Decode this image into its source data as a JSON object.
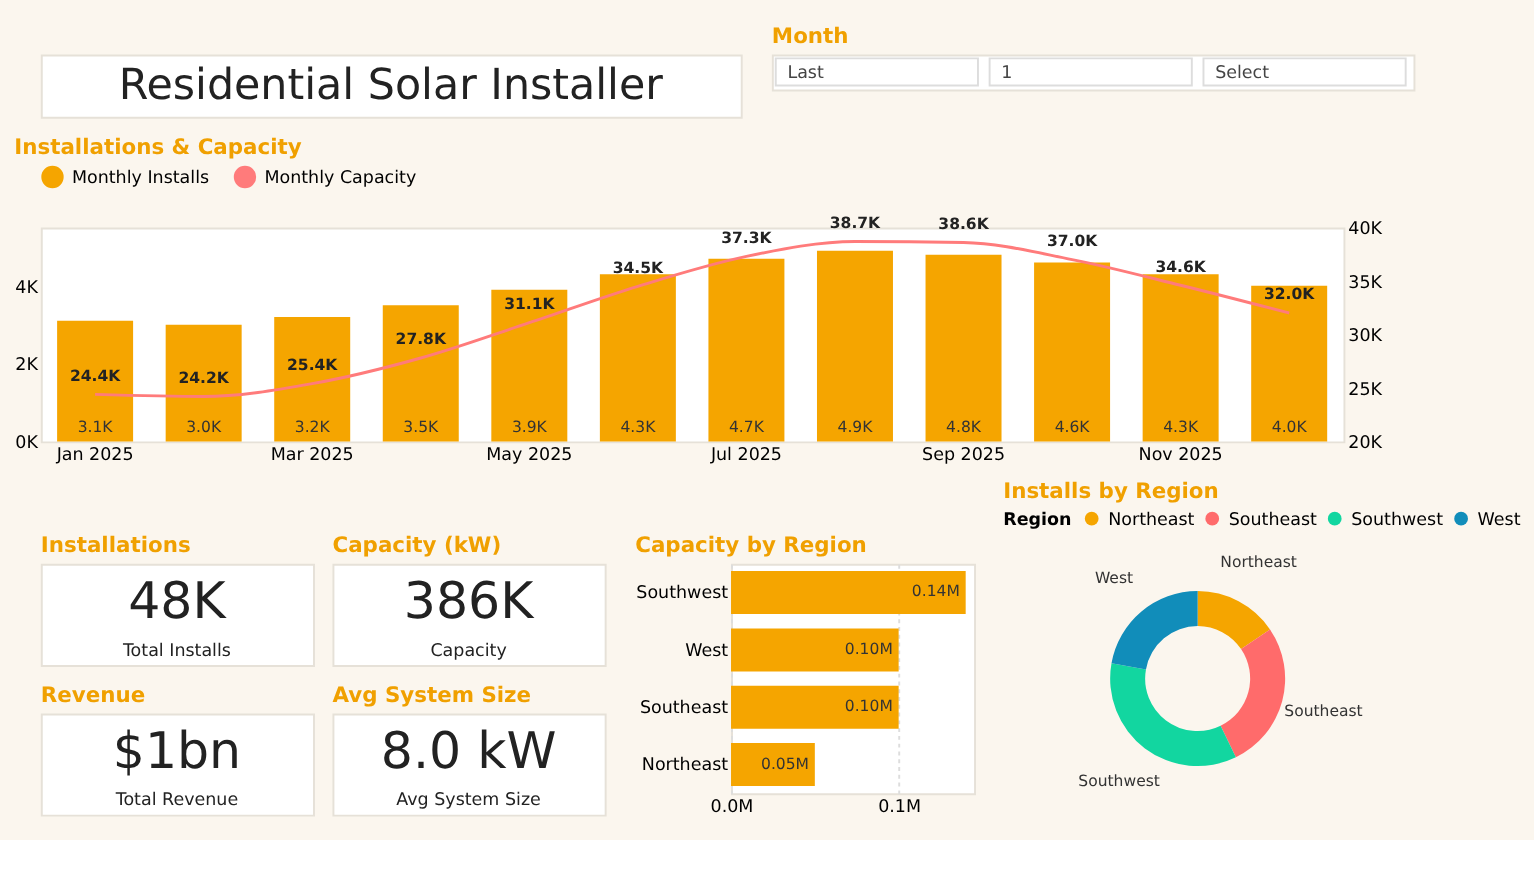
{
  "chart_data": [
    {
      "type": "other",
      "title": "Residential Solar Installer"
    },
    {
      "type": "other",
      "title": "Month",
      "annotations": [
        "Last",
        "1",
        "Select"
      ]
    },
    {
      "type": "bar",
      "title": "Installations & Capacity",
      "categories": [
        "Jan 2025",
        null,
        "Mar 2025",
        null,
        "May 2025",
        null,
        "Jul 2025",
        null,
        "Sep 2025",
        null,
        "Nov 2025",
        null
      ],
      "series": [
        {
          "name": "Monthly Installs",
          "type": "bar",
          "color": "#f5a500",
          "values": [
            3100,
            3000,
            3200,
            3500,
            3900,
            4300,
            4700,
            4900,
            4800,
            4600,
            4300,
            4000
          ],
          "value_labels": [
            "3.1K",
            "3.0K",
            "3.2K",
            "3.5K",
            "3.9K",
            "4.3K",
            "4.7K",
            "4.9K",
            "4.8K",
            "4.6K",
            "4.3K",
            "4.0K"
          ]
        },
        {
          "name": "Monthly Capacity",
          "type": "line",
          "axis": "y2",
          "color": "#ff7b7b",
          "values": [
            24400,
            24200,
            25400,
            27800,
            31100,
            34500,
            37300,
            38700,
            38600,
            37000,
            34600,
            32000
          ],
          "value_labels": [
            "24.4K",
            "24.2K",
            "25.4K",
            "27.8K",
            "31.1K",
            "34.5K",
            "37.3K",
            "38.7K",
            "38.6K",
            "37.0K",
            "34.6K",
            "32.0K"
          ]
        }
      ],
      "ylim": [
        0,
        5500
      ],
      "yticks": [
        {
          "value": 0,
          "label": "0K"
        },
        {
          "value": 2000,
          "label": "2K"
        },
        {
          "value": 4000,
          "label": "4K"
        }
      ],
      "y2lim": [
        20000,
        40000
      ],
      "y2ticks": [
        {
          "value": 20000,
          "label": "20K"
        },
        {
          "value": 25000,
          "label": "25K"
        },
        {
          "value": 30000,
          "label": "30K"
        },
        {
          "value": 35000,
          "label": "35K"
        },
        {
          "value": 40000,
          "label": "40K"
        }
      ],
      "legend": "top left",
      "marker": "none",
      "line_style": "solid"
    },
    {
      "type": "other",
      "title": "Installations",
      "annotations": [
        "48K",
        "Total Installs"
      ]
    },
    {
      "type": "other",
      "title": "Capacity (kW)",
      "annotations": [
        "386K",
        "Capacity"
      ]
    },
    {
      "type": "other",
      "title": "Revenue",
      "annotations": [
        "$1bn",
        "Total Revenue"
      ]
    },
    {
      "type": "other",
      "title": "Avg System Size",
      "annotations": [
        "8.0 kW",
        "Avg System Size"
      ]
    },
    {
      "type": "bar",
      "orientation": "horizontal",
      "title": "Capacity by Region",
      "categories": [
        "Southwest",
        "West",
        "Southeast",
        "Northeast"
      ],
      "values": [
        0.14,
        0.1,
        0.1,
        0.05
      ],
      "value_labels": [
        "0.14M",
        "0.10M",
        "0.10M",
        "0.05M"
      ],
      "color": "#f5a500",
      "xlim": [
        0,
        0.145
      ],
      "xticks": [
        {
          "value": 0,
          "label": "0.0M"
        },
        {
          "value": 0.1,
          "label": "0.1M"
        }
      ],
      "grid": "x"
    },
    {
      "type": "donut",
      "title": "Installs by Region",
      "legend_title": "Region",
      "categories": [
        "Northeast",
        "Southeast",
        "Southwest",
        "West"
      ],
      "values": [
        15.5,
        27.3,
        35.0,
        22.2
      ],
      "colors": [
        "#f5a500",
        "#ff6b6b",
        "#12d6a0",
        "#118dba"
      ],
      "legend": "top"
    }
  ]
}
